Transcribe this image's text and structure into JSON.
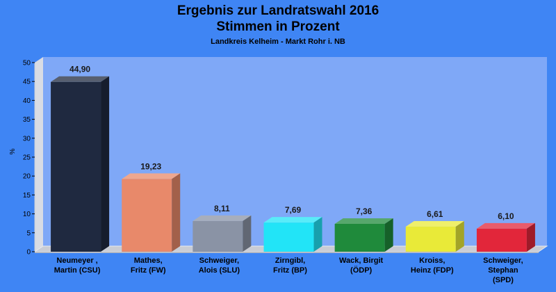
{
  "header": {
    "title_line1": "Ergebnis zur Landratswahl 2016",
    "title_line2": "Stimmen in Prozent",
    "subtitle": "Landkreis Kelheim - Markt Rohr i. NB"
  },
  "chart_data": {
    "type": "bar",
    "title": "Ergebnis zur Landratswahl 2016 Stimmen in Prozent",
    "subtitle": "Landkreis Kelheim - Markt Rohr i. NB",
    "ylabel": "%",
    "xlabel": "",
    "ylim": [
      0,
      50
    ],
    "yticks": [
      0,
      5,
      10,
      15,
      20,
      25,
      30,
      35,
      40,
      45,
      50
    ],
    "grid": false,
    "categories": [
      [
        "Neumeyer ,",
        "Martin (CSU)"
      ],
      [
        "Mathes,",
        "Fritz (FW)"
      ],
      [
        "Schweiger,",
        "Alois (SLU)"
      ],
      [
        "Zirngibl,",
        "Fritz (BP)"
      ],
      [
        "Wack, Birgit",
        "(ÖDP)"
      ],
      [
        "Kroiss,",
        "Heinz (FDP)"
      ],
      [
        "Schweiger,",
        "Stephan",
        "(SPD)"
      ]
    ],
    "values": [
      44.9,
      19.23,
      8.11,
      7.69,
      7.36,
      6.61,
      6.1
    ],
    "value_labels": [
      "44,90",
      "19,23",
      "8,11",
      "7,69",
      "7,36",
      "6,61",
      "6,10"
    ],
    "colors": [
      "#1f2940",
      "#e8896a",
      "#8a93a5",
      "#22e4f7",
      "#1f8a3b",
      "#e9ea38",
      "#e2263a"
    ]
  }
}
